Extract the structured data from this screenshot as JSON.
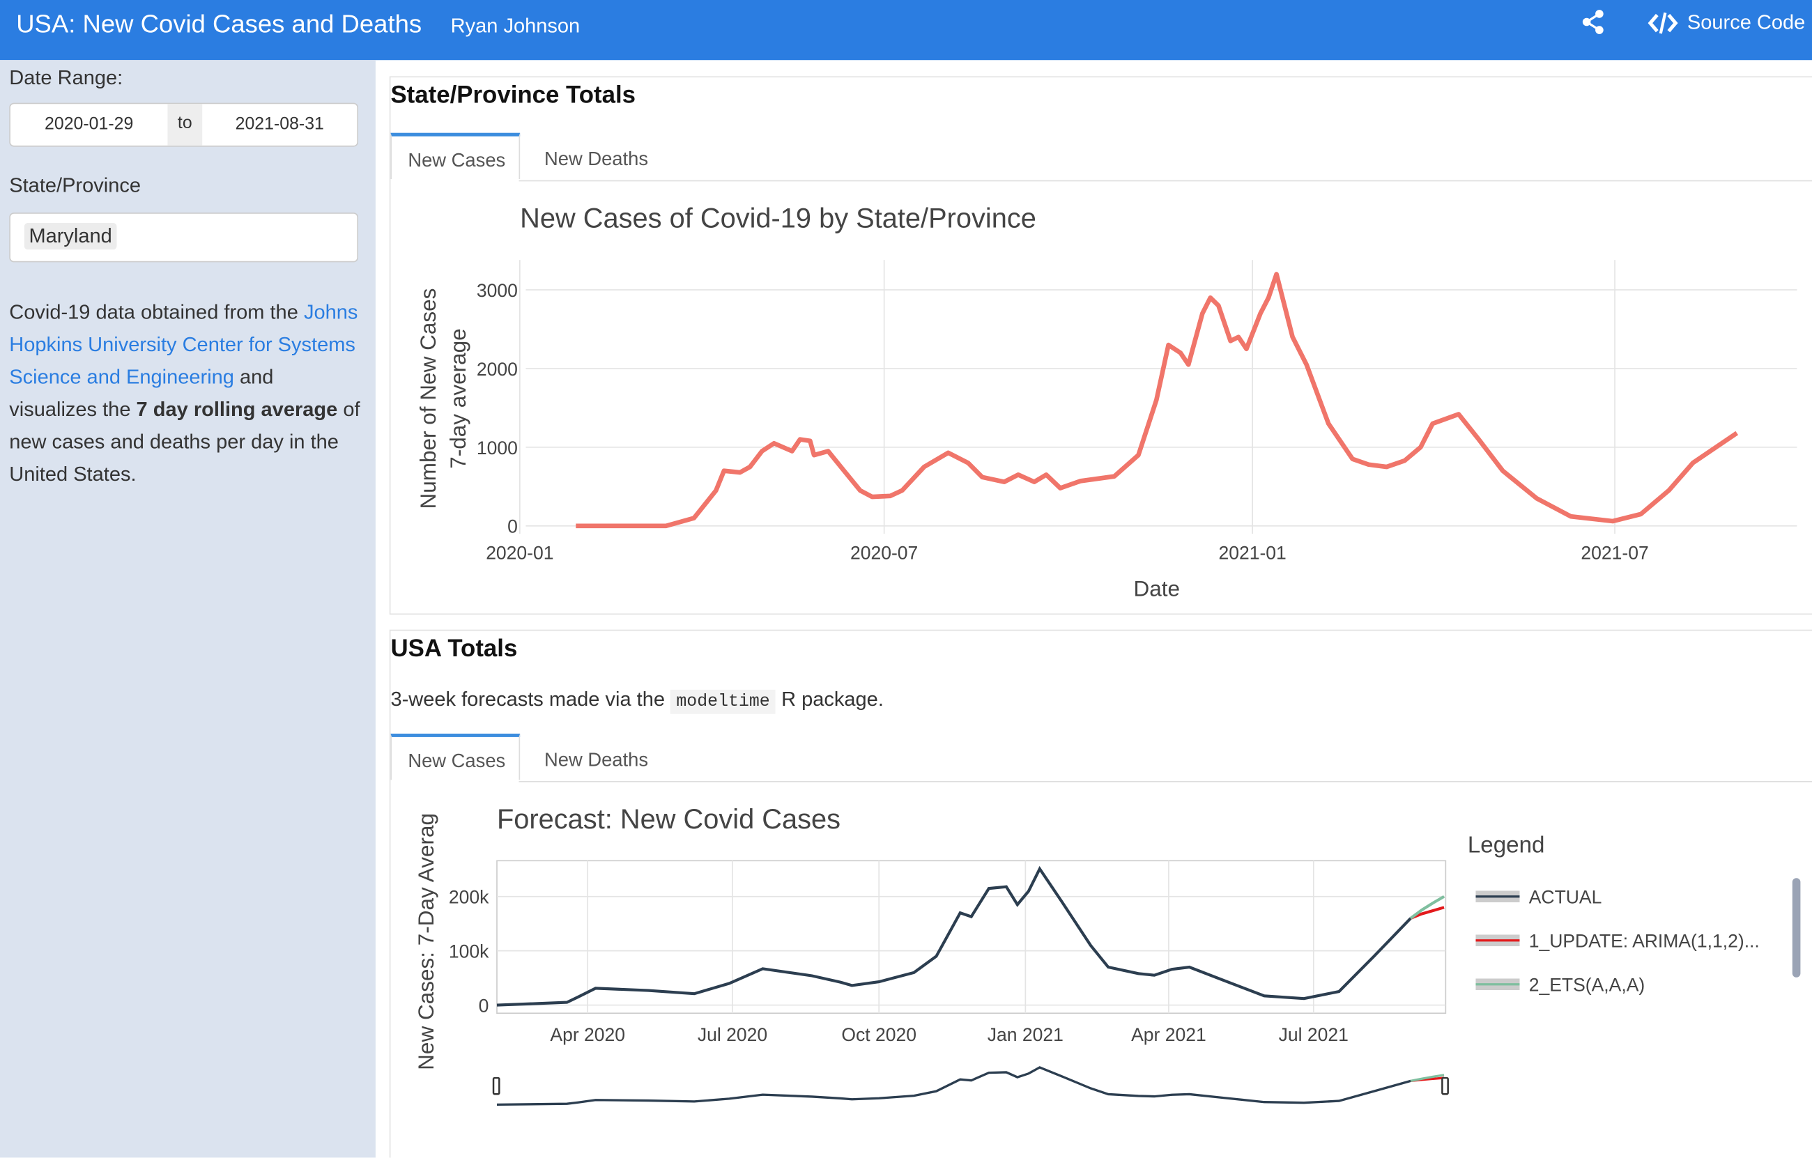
{
  "header": {
    "title": "USA: New Covid Cases and Deaths",
    "author": "Ryan Johnson",
    "source_code": "Source Code"
  },
  "sidebar": {
    "date_label": "Date Range:",
    "date_start": "2020-01-29",
    "date_sep": "to",
    "date_end": "2021-08-31",
    "state_label": "State/Province",
    "state_value": "Maryland",
    "note": {
      "text1": "Covid-19 data obtained from the",
      "link": "Johns Hopkins University Center for Systems Science and Engineering",
      "text2": "and visualizes the",
      "bold": "7 day rolling average",
      "text3": "of new cases and deaths per day in the United States."
    }
  },
  "sections": [
    {
      "title": "State/Province Totals",
      "tabs": [
        "New Cases",
        "New Deaths"
      ]
    },
    {
      "title": "USA Totals",
      "note": {
        "text1": "3-week forecasts made via the",
        "code": "modeltime",
        "text2": "R package."
      },
      "tabs": [
        "New Cases",
        "New Deaths"
      ]
    }
  ],
  "chart_data": [
    {
      "type": "line",
      "title": "New Cases of Covid-19 by State/Province",
      "x_label": "Date",
      "y_label": [
        "Number of New Cases",
        "7-day average"
      ],
      "color": "#f0756a",
      "grid": true,
      "xlim": [
        "2020-01-04",
        "2021-09-30"
      ],
      "xticks": [
        "2020-01",
        "2020-07",
        "2021-01",
        "2021-07"
      ],
      "ylim": [
        -100,
        3380
      ],
      "yticks": [
        0,
        1000,
        2000,
        3000
      ],
      "x": [
        "2020-01-29",
        "2020-03-14",
        "2020-03-28",
        "2020-04-08",
        "2020-04-12",
        "2020-04-20",
        "2020-04-25",
        "2020-05-01",
        "2020-05-07",
        "2020-05-16",
        "2020-05-20",
        "2020-05-25",
        "2020-05-27",
        "2020-06-03",
        "2020-06-11",
        "2020-06-19",
        "2020-06-25",
        "2020-07-04",
        "2020-07-10",
        "2020-07-21",
        "2020-08-02",
        "2020-08-12",
        "2020-08-19",
        "2020-08-30",
        "2020-09-06",
        "2020-09-14",
        "2020-09-20",
        "2020-09-27",
        "2020-10-07",
        "2020-10-24",
        "2020-11-05",
        "2020-11-14",
        "2020-11-20",
        "2020-11-26",
        "2020-11-30",
        "2020-12-07",
        "2020-12-11",
        "2020-12-15",
        "2020-12-21",
        "2020-12-25",
        "2020-12-29",
        "2021-01-05",
        "2021-01-09",
        "2021-01-13",
        "2021-01-21",
        "2021-01-28",
        "2021-02-08",
        "2021-02-20",
        "2021-02-28",
        "2021-03-09",
        "2021-03-18",
        "2021-03-26",
        "2021-04-01",
        "2021-04-14",
        "2021-04-24",
        "2021-05-06",
        "2021-05-23",
        "2021-06-09",
        "2021-06-30",
        "2021-07-14",
        "2021-07-28",
        "2021-08-09",
        "2021-08-31"
      ],
      "values": [
        0,
        0,
        100,
        450,
        700,
        680,
        750,
        950,
        1050,
        950,
        1100,
        1080,
        900,
        950,
        700,
        450,
        370,
        380,
        450,
        750,
        930,
        800,
        620,
        560,
        650,
        560,
        650,
        480,
        570,
        630,
        900,
        1600,
        2300,
        2200,
        2050,
        2700,
        2900,
        2800,
        2350,
        2400,
        2250,
        2700,
        2900,
        3200,
        2400,
        2050,
        1300,
        850,
        780,
        750,
        830,
        1000,
        1300,
        1420,
        1100,
        700,
        350,
        120,
        60,
        150,
        450,
        800,
        1180
      ]
    },
    {
      "type": "line",
      "title": "Forecast: New Covid Cases",
      "y_label": "New Cases: 7-Day Averag",
      "legend": "right",
      "legend_title": "Legend",
      "grid": true,
      "range_slider": true,
      "xlim": [
        "2020-02-04",
        "2021-09-22"
      ],
      "xticks": [
        {
          "value": "2020-04",
          "label": "Apr 2020"
        },
        {
          "value": "2020-07",
          "label": "Jul 2020"
        },
        {
          "value": "2020-10",
          "label": "Oct 2020"
        },
        {
          "value": "2021-01",
          "label": "Jan 2021"
        },
        {
          "value": "2021-04",
          "label": "Apr 2021"
        },
        {
          "value": "2021-07",
          "label": "Jul 2021"
        }
      ],
      "ylim": [
        -15000,
        266000
      ],
      "yticks": [
        0,
        {
          "value": 100000,
          "label": "100k"
        },
        {
          "value": 200000,
          "label": "200k"
        }
      ],
      "x": [
        "2020-02-04",
        "2020-03-19",
        "2020-03-26",
        "2020-04-06",
        "2020-05-09",
        "2020-06-07",
        "2020-06-29",
        "2020-07-20",
        "2020-08-20",
        "2020-09-07",
        "2020-09-14",
        "2020-10-01",
        "2020-10-23",
        "2020-11-06",
        "2020-11-21",
        "2020-11-28",
        "2020-12-09",
        "2020-12-20",
        "2020-12-27",
        "2021-01-03",
        "2021-01-10",
        "2021-01-24",
        "2021-02-11",
        "2021-02-22",
        "2021-03-13",
        "2021-03-23",
        "2021-04-03",
        "2021-04-14",
        "2021-05-06",
        "2021-05-31",
        "2021-06-25",
        "2021-07-17",
        "2021-08-08",
        "2021-08-31",
        "2021-09-07",
        "2021-09-14",
        "2021-09-21"
      ],
      "series": [
        {
          "name": "ACTUAL",
          "color": "#2c3e50",
          "values": [
            0,
            5000,
            15000,
            31000,
            27000,
            21000,
            40000,
            67000,
            54000,
            42000,
            36000,
            43000,
            60000,
            90000,
            170000,
            163000,
            215000,
            218000,
            185000,
            210000,
            251000,
            190000,
            110000,
            70000,
            58000,
            55000,
            66000,
            70000,
            45000,
            17000,
            12000,
            25000,
            90000,
            160000,
            null,
            null,
            null
          ]
        },
        {
          "name": "1_UPDATE: ARIMA(1,1,2)...",
          "color": "#e31a1c",
          "values": [
            null,
            null,
            null,
            null,
            null,
            null,
            null,
            null,
            null,
            null,
            null,
            null,
            null,
            null,
            null,
            null,
            null,
            null,
            null,
            null,
            null,
            null,
            null,
            null,
            null,
            null,
            null,
            null,
            null,
            null,
            null,
            null,
            null,
            160000,
            168000,
            174000,
            180000
          ]
        },
        {
          "name": "2_ETS(A,A,A)",
          "color": "#7fbf9f",
          "values": [
            null,
            null,
            null,
            null,
            null,
            null,
            null,
            null,
            null,
            null,
            null,
            null,
            null,
            null,
            null,
            null,
            null,
            null,
            null,
            null,
            null,
            null,
            null,
            null,
            null,
            null,
            null,
            null,
            null,
            null,
            null,
            null,
            null,
            160000,
            175000,
            188000,
            200000
          ]
        }
      ]
    }
  ]
}
